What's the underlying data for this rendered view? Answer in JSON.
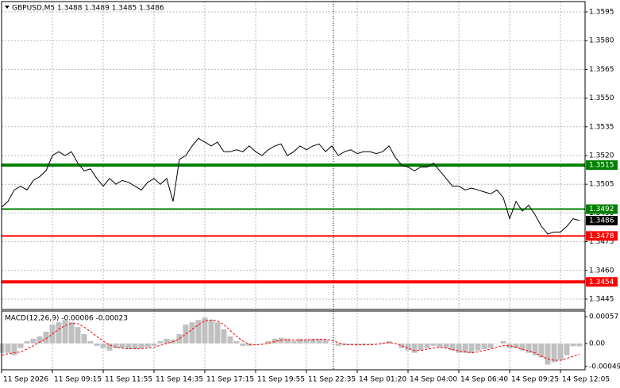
{
  "chart_data": [
    {
      "type": "line",
      "title": "GBPUSD,M5  1.3488 1.3489 1.3485 1.3486",
      "color": "#000000",
      "grid": true,
      "categories": [
        "11 Sep 2026",
        null,
        null,
        null,
        null,
        null,
        null,
        null,
        "11 Sep 09:15",
        null,
        null,
        null,
        null,
        null,
        null,
        null,
        "11 Sep 11:55",
        null,
        null,
        null,
        null,
        null,
        null,
        null,
        "11 Sep 14:35",
        null,
        null,
        null,
        null,
        null,
        null,
        null,
        "11 Sep 17:15",
        null,
        null,
        null,
        null,
        null,
        null,
        null,
        "11 Sep 19:55",
        null,
        null,
        null,
        null,
        null,
        null,
        null,
        "11 Sep 22:35",
        null,
        null,
        null,
        null,
        null,
        null,
        null,
        "14 Sep 01:20",
        null,
        null,
        null,
        null,
        null,
        null,
        null,
        "14 Sep 04:00",
        null,
        null,
        null,
        null,
        null,
        null,
        null,
        "14 Sep 06:40",
        null,
        null,
        null,
        null,
        null,
        null,
        null,
        "14 Sep 09:25",
        null,
        null,
        null,
        null,
        null,
        null,
        null,
        "14 Sep 12:05",
        null,
        null,
        null
      ],
      "values": [
        1.3493,
        1.3496,
        1.3502,
        1.3504,
        1.3502,
        1.3507,
        1.3509,
        1.3512,
        1.352,
        1.3522,
        1.352,
        1.3522,
        1.3516,
        1.3512,
        1.3513,
        1.3508,
        1.3504,
        1.3508,
        1.3505,
        1.3507,
        1.3506,
        1.3504,
        1.3502,
        1.3506,
        1.3508,
        1.3505,
        1.3508,
        1.3496,
        1.3518,
        1.352,
        1.3525,
        1.3529,
        1.3527,
        1.3525,
        1.3527,
        1.3522,
        1.3522,
        1.3523,
        1.3522,
        1.3525,
        1.3522,
        1.352,
        1.3523,
        1.3525,
        1.3526,
        1.352,
        1.3522,
        1.3525,
        1.3523,
        1.3525,
        1.3526,
        1.3522,
        1.3525,
        1.352,
        1.3522,
        1.3523,
        1.3521,
        1.3522,
        1.3522,
        1.3521,
        1.3522,
        1.3525,
        1.3519,
        1.3515,
        1.3514,
        1.3512,
        1.3514,
        1.3514,
        1.3516,
        1.3512,
        1.3508,
        1.3504,
        1.3504,
        1.3502,
        1.3503,
        1.3502,
        1.3501,
        1.35,
        1.3502,
        1.3498,
        1.3487,
        1.3496,
        1.3491,
        1.3494,
        1.3489,
        1.3483,
        1.3479,
        1.348,
        1.348,
        1.3483,
        1.3487,
        1.3486
      ],
      "ylim": [
        1.34396,
        1.36004
      ],
      "yticks": [
        1.3595,
        {
          "value": 1.358,
          "label": "1.3580"
        },
        1.3565,
        {
          "value": 1.355,
          "label": "1.3550"
        },
        1.3535,
        {
          "value": 1.352,
          "label": "1.3520"
        },
        1.3505,
        {
          "value": 1.349,
          "label": "1.3490"
        },
        1.3475,
        {
          "value": 1.346,
          "label": "1.3460"
        },
        1.3445
      ],
      "levels": [
        {
          "value": 1.3515,
          "color": "#008000",
          "width": 4
        },
        {
          "value": 1.3492,
          "color": "#008000",
          "width": 2
        },
        {
          "value": 1.3478,
          "color": "#ff0000",
          "width": 2
        },
        {
          "value": 1.3454,
          "color": "#ff0000",
          "width": 4
        }
      ],
      "current_price": 1.3486
    },
    {
      "type": "macd",
      "title": "MACD(12,26,9) -0.00006 -0.00023",
      "histogram": {
        "color": "#c0c0c0",
        "values": [
          -0.0002,
          -0.0002,
          -0.00025,
          -0.0001,
          5e-05,
          0.0001,
          0.00015,
          0.00025,
          0.0004,
          0.00045,
          0.0005,
          0.00045,
          0.00035,
          0.0002,
          5e-05,
          -5e-05,
          -0.0001,
          -0.00015,
          -0.0001,
          -0.0001,
          -0.00012,
          -0.00012,
          -0.0001,
          -8e-05,
          -5e-05,
          5e-05,
          0.0001,
          8e-05,
          0.0002,
          0.0004,
          0.00045,
          0.0005,
          0.00055,
          0.0005,
          0.00045,
          0.0003,
          0.00015,
          5e-05,
          -5e-05,
          -5e-05,
          0,
          0,
          5e-05,
          0.0001,
          0.00012,
          0.0001,
          5e-05,
          0.0001,
          8e-05,
          0.0001,
          0.0001,
          8e-05,
          0,
          -5e-05,
          -4e-05,
          -3e-05,
          -3e-05,
          -3e-05,
          -2e-05,
          0,
          2e-05,
          5e-05,
          0,
          -0.0001,
          -0.00015,
          -0.0002,
          -0.00015,
          -0.0001,
          -5e-05,
          -8e-05,
          -0.0001,
          -0.00015,
          -0.0002,
          -0.0002,
          -0.0002,
          -0.00015,
          -0.00012,
          -0.0001,
          0,
          5e-05,
          -0.0001,
          -0.0001,
          -0.00015,
          -0.0002,
          -0.00025,
          -0.0003,
          -0.00045,
          -0.0004,
          -0.00035,
          -0.00025,
          -6e-05,
          -6e-05
        ]
      },
      "signal": {
        "color": "#ff0000",
        "values": [
          -0.00025,
          -0.00022,
          -0.0002,
          -0.00018,
          -0.00012,
          -5e-05,
          3e-05,
          0.0001,
          0.0002,
          0.0003,
          0.00038,
          0.00043,
          0.00042,
          0.00035,
          0.00025,
          0.00015,
          5e-05,
          -3e-05,
          -8e-05,
          -0.0001,
          -0.00011,
          -0.00011,
          -0.00011,
          -0.0001,
          -8e-05,
          -4e-05,
          0,
          4e-05,
          0.0001,
          0.0002,
          0.0003,
          0.0004,
          0.00048,
          0.0005,
          0.00048,
          0.0004,
          0.00028,
          0.00015,
          5e-05,
          -2e-05,
          -3e-05,
          -2e-05,
          0,
          4e-05,
          7e-05,
          8e-05,
          7e-05,
          7e-05,
          8e-05,
          8e-05,
          9e-05,
          9e-05,
          6e-05,
          2e-05,
          -2e-05,
          -3e-05,
          -3e-05,
          -3e-05,
          -3e-05,
          -2e-05,
          0,
          2e-05,
          0,
          -5e-05,
          -0.0001,
          -0.00015,
          -0.00015,
          -0.00012,
          -0.0001,
          -8e-05,
          -0.0001,
          -0.00013,
          -0.00016,
          -0.00018,
          -0.0002,
          -0.00018,
          -0.00015,
          -0.00012,
          -8e-05,
          -4e-05,
          -5e-05,
          -8e-05,
          -0.00012,
          -0.00016,
          -0.0002,
          -0.00027,
          -0.00033,
          -0.00036,
          -0.00036,
          -0.00032,
          -0.00027,
          -0.00023
        ]
      },
      "ylim": [
        -0.00056,
        0.00069
      ],
      "yticks": [
        0.00057,
        {
          "value": 0,
          "label": "0.00"
        },
        -0.00049
      ]
    }
  ]
}
